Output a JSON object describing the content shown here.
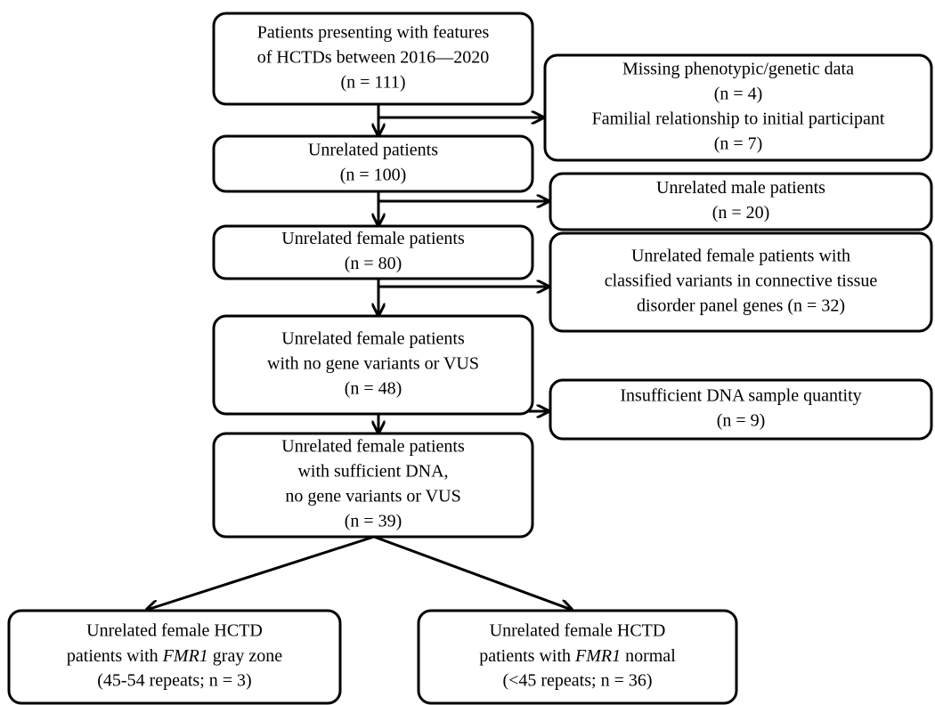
{
  "nodes": [
    {
      "lines": [
        "Patients presenting with features",
        "of HCTDs between 2016—2020",
        "(n = 111)"
      ]
    },
    {
      "lines": [
        "Unrelated patients",
        "(n = 100)"
      ]
    },
    {
      "lines": [
        "Unrelated female patients",
        "(n = 80)"
      ]
    },
    {
      "lines": [
        "Unrelated female patients",
        "with no gene variants or VUS",
        "(n = 48)"
      ]
    },
    {
      "lines": [
        "Unrelated female patients",
        "with sufficient DNA,",
        "no gene variants or VUS",
        "(n = 39)"
      ]
    },
    {
      "lines": [
        "Missing phenotypic/genetic data",
        "(n = 4)",
        "Familial relationship to initial participant",
        "(n = 7)"
      ]
    },
    {
      "lines": [
        "Unrelated male patients",
        "(n = 20)"
      ]
    },
    {
      "lines": [
        "Unrelated female patients with",
        "classified variants in connective tissue",
        "disorder panel genes (n = 32)"
      ]
    },
    {
      "lines": [
        "Insufficient DNA sample quantity",
        "(n = 9)"
      ]
    },
    {
      "lines": [
        "Unrelated female HCTD",
        [
          "patients with ",
          "FMR1",
          " gray zone"
        ],
        "(45-54 repeats; n = 3)"
      ]
    },
    {
      "lines": [
        "Unrelated female HCTD",
        [
          "patients with ",
          "FMR1",
          " normal"
        ],
        "(<45 repeats; n = 36)"
      ]
    }
  ]
}
